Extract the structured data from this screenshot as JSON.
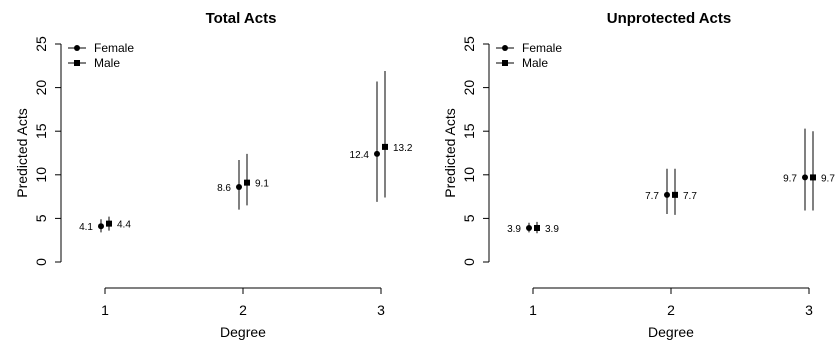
{
  "chart_data": [
    {
      "type": "scatter",
      "title": "Total Acts",
      "xlabel": "Degree",
      "ylabel": "Predicted Acts",
      "x_categories": [
        "1",
        "2",
        "3"
      ],
      "ylim": [
        0,
        25
      ],
      "y_ticks": [
        "0",
        "5",
        "10",
        "15",
        "20",
        "25"
      ],
      "legend": {
        "position": "top-left",
        "entries": [
          "Female",
          "Male"
        ]
      },
      "series": [
        {
          "name": "Female",
          "marker": "circle",
          "points": [
            {
              "x": "1",
              "y": 4.1,
              "low": 3.4,
              "high": 4.9,
              "label": "4.1"
            },
            {
              "x": "2",
              "y": 8.6,
              "low": 6.0,
              "high": 11.7,
              "label": "8.6"
            },
            {
              "x": "3",
              "y": 12.4,
              "low": 6.9,
              "high": 20.7,
              "label": "12.4"
            }
          ]
        },
        {
          "name": "Male",
          "marker": "square",
          "points": [
            {
              "x": "1",
              "y": 4.4,
              "low": 3.6,
              "high": 5.2,
              "label": "4.4"
            },
            {
              "x": "2",
              "y": 9.1,
              "low": 6.5,
              "high": 12.4,
              "label": "9.1"
            },
            {
              "x": "3",
              "y": 13.2,
              "low": 7.4,
              "high": 21.9,
              "label": "13.2"
            }
          ]
        }
      ]
    },
    {
      "type": "scatter",
      "title": "Unprotected Acts",
      "xlabel": "Degree",
      "ylabel": "Predicted Acts",
      "x_categories": [
        "1",
        "2",
        "3"
      ],
      "ylim": [
        0,
        25
      ],
      "y_ticks": [
        "0",
        "5",
        "10",
        "15",
        "20",
        "25"
      ],
      "legend": {
        "position": "top-left",
        "entries": [
          "Female",
          "Male"
        ]
      },
      "series": [
        {
          "name": "Female",
          "marker": "circle",
          "points": [
            {
              "x": "1",
              "y": 3.9,
              "low": 3.4,
              "high": 4.5,
              "label": "3.9"
            },
            {
              "x": "2",
              "y": 7.7,
              "low": 5.5,
              "high": 10.7,
              "label": "7.7"
            },
            {
              "x": "3",
              "y": 9.7,
              "low": 5.9,
              "high": 15.3,
              "label": "9.7"
            }
          ]
        },
        {
          "name": "Male",
          "marker": "square",
          "points": [
            {
              "x": "1",
              "y": 3.9,
              "low": 3.3,
              "high": 4.6,
              "label": "3.9"
            },
            {
              "x": "2",
              "y": 7.7,
              "low": 5.4,
              "high": 10.7,
              "label": "7.7"
            },
            {
              "x": "3",
              "y": 9.7,
              "low": 5.9,
              "high": 15.0,
              "label": "9.7"
            }
          ]
        }
      ]
    }
  ]
}
